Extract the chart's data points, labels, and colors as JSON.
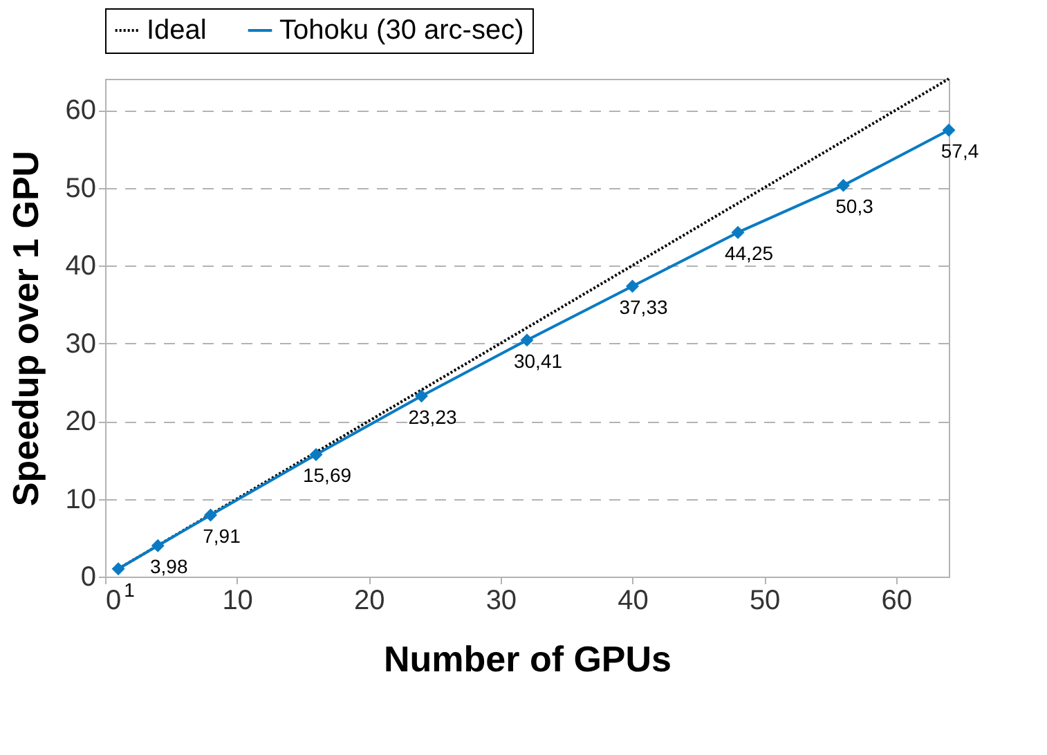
{
  "chart_data": {
    "type": "line",
    "xlabel": "Number of GPUs",
    "ylabel": "Speedup over 1 GPU",
    "x": [
      1,
      4,
      8,
      16,
      24,
      32,
      40,
      48,
      56,
      64
    ],
    "series": [
      {
        "name": "Ideal",
        "color": "#000000",
        "x": [
          1,
          64
        ],
        "values": [
          1,
          64
        ],
        "line_style": "dotted",
        "marker": "none"
      },
      {
        "name": "Tohoku (30 arc-sec)",
        "color": "#0a7bc3",
        "values": [
          1,
          3.98,
          7.91,
          15.69,
          23.23,
          30.41,
          37.33,
          44.25,
          50.3,
          57.4
        ],
        "marker": "diamond",
        "line_style": "solid",
        "value_labels": [
          "1",
          "3,98",
          "7,91",
          "15,69",
          "23,23",
          "30,41",
          "37,33",
          "44,25",
          "50,3",
          "57,4"
        ]
      }
    ],
    "xlim": [
      0,
      64
    ],
    "ylim": [
      0,
      64
    ],
    "xticks": [
      0,
      10,
      20,
      30,
      40,
      50,
      60
    ],
    "yticks": [
      0,
      10,
      20,
      30,
      40,
      50,
      60
    ],
    "grid": "y",
    "legend": "top"
  }
}
